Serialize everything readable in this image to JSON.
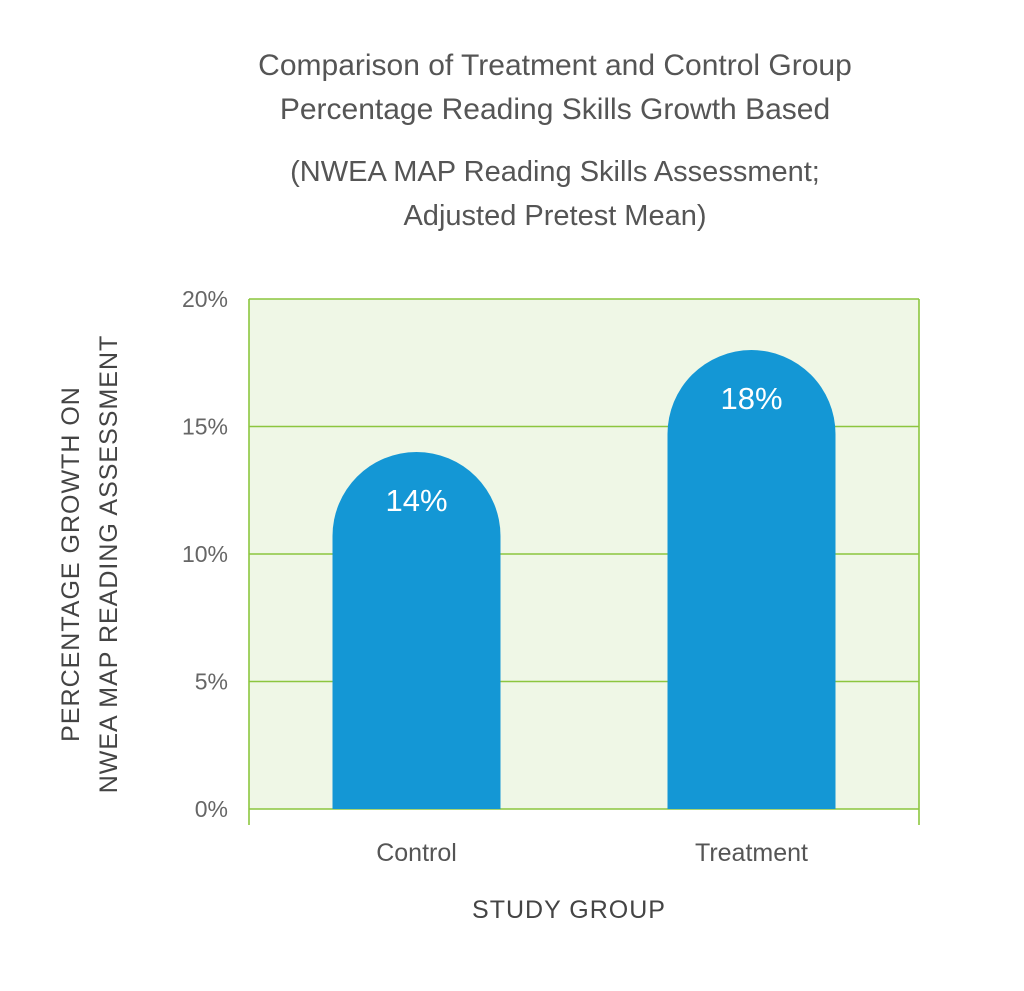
{
  "chart_data": {
    "type": "bar",
    "title_lines": [
      "Comparison of Treatment and Control Group",
      "Percentage Reading Skills Growth Based"
    ],
    "subtitle_lines": [
      "(NWEA MAP Reading Skills Assessment;",
      "Adjusted Pretest Mean)"
    ],
    "categories": [
      "Control",
      "Treatment"
    ],
    "values": [
      14,
      18
    ],
    "data_labels": [
      "14%",
      "18%"
    ],
    "xlabel": "STUDY GROUP",
    "ylabel_lines": [
      "PERCENTAGE GROWTH ON",
      "NWEA MAP READING ASSESSMENT"
    ],
    "ylim": [
      0,
      20
    ],
    "yticks": [
      0,
      5,
      10,
      15,
      20
    ],
    "ytick_labels": [
      "0%",
      "5%",
      "10%",
      "15%",
      "20%"
    ],
    "grid": true,
    "colors": {
      "bar": "#1497d5",
      "plot_background": "#eff7e6",
      "gridline": "#8cc63f"
    }
  }
}
